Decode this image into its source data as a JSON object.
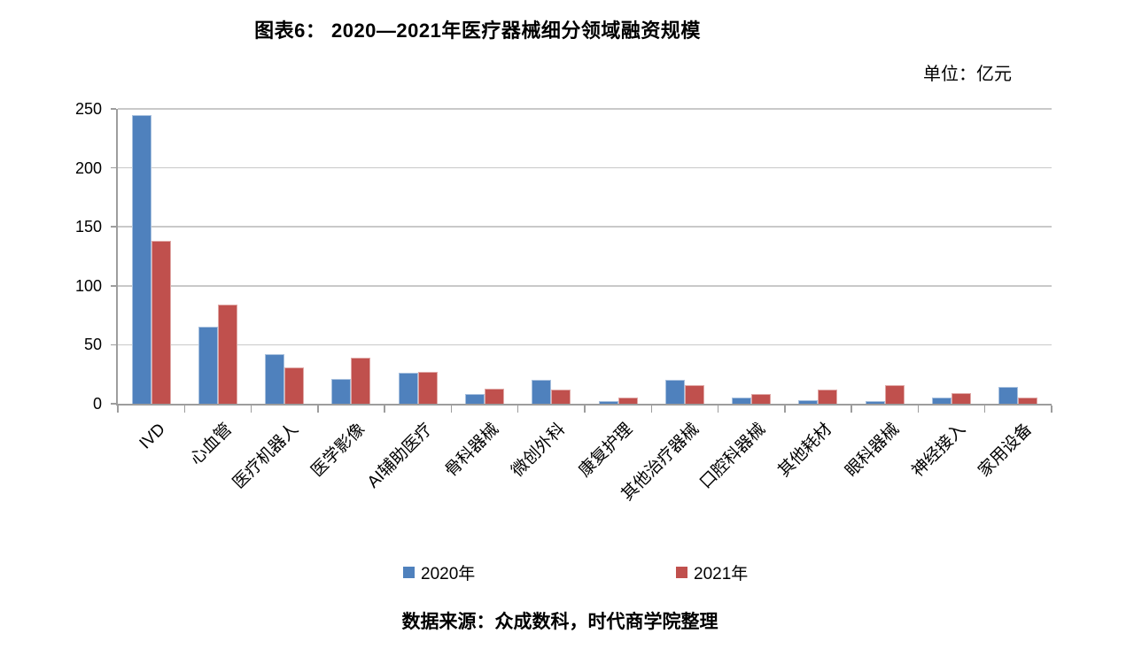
{
  "chart_data": {
    "type": "bar",
    "title": "图表6： 2020—2021年医疗器械细分领域融资规模",
    "unit_label": "单位：亿元",
    "source": "数据来源：众成数科，时代商学院整理",
    "categories": [
      "IVD",
      "心血管",
      "医疗机器人",
      "医学影像",
      "AI辅助医疗",
      "骨科器械",
      "微创外科",
      "康复护理",
      "其他治疗器械",
      "口腔科器械",
      "其他耗材",
      "眼科器械",
      "神经接入",
      "家用设备"
    ],
    "series": [
      {
        "name": "2020年",
        "color": "#4F81BD",
        "values": [
          245,
          65,
          42,
          21,
          26,
          8,
          20,
          2,
          20,
          5,
          3,
          2,
          5,
          14
        ]
      },
      {
        "name": "2021年",
        "color": "#C0504D",
        "values": [
          138,
          84,
          31,
          39,
          27,
          13,
          12,
          5,
          16,
          8,
          12,
          16,
          9,
          5
        ]
      }
    ],
    "xlabel": "",
    "ylabel": "",
    "ylim": [
      0,
      250
    ],
    "yticks": [
      0,
      50,
      100,
      150,
      200,
      250
    ],
    "grid": true,
    "legend_position": "bottom",
    "colors": {
      "gridline": "#C9C9C9",
      "axis": "#9D9D9D",
      "text": "#000000",
      "background": "#FFFFFF"
    }
  }
}
